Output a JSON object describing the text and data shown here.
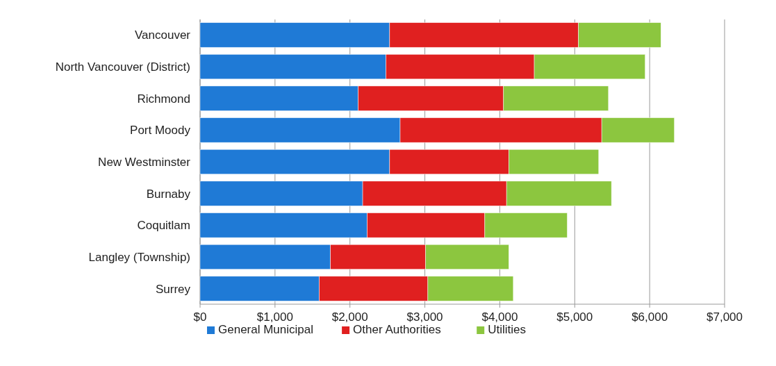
{
  "chart_data": {
    "type": "bar",
    "orientation": "horizontal",
    "stacked": true,
    "categories": [
      "Vancouver",
      "North Vancouver (District)",
      "Richmond",
      "Port Moody",
      "New Westminster",
      "Burnaby",
      "Coquitlam",
      "Langley (Township)",
      "Surrey"
    ],
    "series": [
      {
        "name": "General Municipal",
        "color": "#1f7ad6",
        "values": [
          2530,
          2480,
          2110,
          2670,
          2530,
          2170,
          2230,
          1740,
          1590
        ]
      },
      {
        "name": "Other Authorities",
        "color": "#e02020",
        "values": [
          2520,
          1980,
          1940,
          2690,
          1590,
          1920,
          1570,
          1270,
          1450
        ]
      },
      {
        "name": "Utilities",
        "color": "#8cc63f",
        "values": [
          1100,
          1480,
          1400,
          970,
          1200,
          1400,
          1100,
          1110,
          1140
        ]
      }
    ],
    "xlim": [
      0,
      7000
    ],
    "xticks": [
      {
        "value": 0,
        "label": "$0"
      },
      {
        "value": 1000,
        "label": "$1,000"
      },
      {
        "value": 2000,
        "label": "$2,000"
      },
      {
        "value": 3000,
        "label": "$3,000"
      },
      {
        "value": 4000,
        "label": "$4,000"
      },
      {
        "value": 5000,
        "label": "$5,000"
      },
      {
        "value": 6000,
        "label": "$6,000"
      },
      {
        "value": 7000,
        "label": "$7,000"
      }
    ],
    "grid": "x",
    "legend": "bottom"
  }
}
